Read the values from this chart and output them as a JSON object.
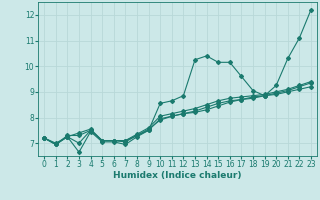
{
  "background_color": "#cce8e8",
  "grid_color": "#b8d8d8",
  "line_color": "#1a7a6e",
  "xlabel": "Humidex (Indice chaleur)",
  "ylim": [
    6.5,
    12.5
  ],
  "xlim": [
    -0.5,
    23.5
  ],
  "yticks": [
    7,
    8,
    9,
    10,
    11,
    12
  ],
  "xticks": [
    0,
    1,
    2,
    3,
    4,
    5,
    6,
    7,
    8,
    9,
    10,
    11,
    12,
    13,
    14,
    15,
    16,
    17,
    18,
    19,
    20,
    21,
    22,
    23
  ],
  "lines": [
    [
      7.2,
      6.95,
      7.25,
      6.65,
      7.45,
      7.05,
      7.05,
      6.95,
      7.25,
      7.5,
      8.55,
      8.65,
      8.85,
      10.25,
      10.4,
      10.15,
      10.15,
      9.6,
      9.05,
      8.85,
      9.25,
      10.3,
      11.1,
      12.2
    ],
    [
      7.2,
      6.95,
      7.3,
      7.3,
      7.5,
      7.1,
      7.1,
      7.1,
      7.3,
      7.55,
      7.9,
      8.05,
      8.15,
      8.2,
      8.3,
      8.45,
      8.6,
      8.7,
      8.8,
      8.85,
      8.9,
      9.0,
      9.1,
      9.2
    ],
    [
      7.2,
      6.95,
      7.25,
      7.0,
      7.5,
      7.1,
      7.1,
      7.1,
      7.35,
      7.6,
      8.05,
      8.15,
      8.25,
      8.35,
      8.5,
      8.65,
      8.75,
      8.8,
      8.85,
      8.9,
      9.0,
      9.1,
      9.25,
      9.4
    ],
    [
      7.2,
      7.0,
      7.25,
      7.4,
      7.55,
      7.1,
      7.1,
      7.05,
      7.3,
      7.5,
      7.95,
      8.05,
      8.15,
      8.25,
      8.4,
      8.55,
      8.65,
      8.7,
      8.75,
      8.85,
      8.95,
      9.05,
      9.2,
      9.35
    ]
  ]
}
